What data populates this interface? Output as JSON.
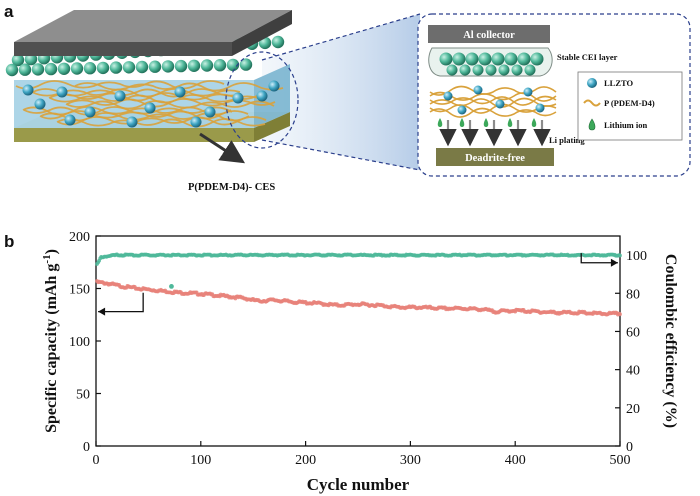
{
  "panels": {
    "a": "a",
    "b": "b"
  },
  "schematic": {
    "arrow_label": "P(PDEM-D4)- CES",
    "inset": {
      "collector": "Al collector",
      "cei": "Stable CEI layer",
      "plating": "Li plating",
      "dendrite": "Deadrite-free",
      "legend": [
        {
          "label": "LLZTO",
          "icon": "teal-sphere-icon"
        },
        {
          "label": "P (PDEM-D4)",
          "icon": "wavy-chain-icon"
        },
        {
          "label": "Lithium ion",
          "icon": "green-droplet-icon"
        }
      ]
    },
    "colors": {
      "ceramic": "#4fb89a",
      "polymer": "#d9a23c",
      "top_plate": "#7f7f7f",
      "bottom_plate": "#9a9a4a",
      "electrolyte": "#9ccbe0"
    }
  },
  "chart_data": {
    "type": "scatter",
    "xlabel": "Cycle number",
    "ylabel_left": "Specific capacity (mAh g⁻¹)",
    "ylabel_left_main": "Specific capacity (mAh g",
    "ylabel_left_sup": "-1",
    "ylabel_left_close": ")",
    "ylabel_right": "Coulombic efficiency (%)",
    "xlim": [
      0,
      500
    ],
    "ylim_left": [
      0,
      200
    ],
    "ylim_right": [
      0,
      110
    ],
    "xticks": [
      0,
      100,
      200,
      300,
      400,
      500
    ],
    "yticks_left": [
      0,
      50,
      100,
      150,
      200
    ],
    "yticks_right": [
      0,
      20,
      40,
      60,
      80,
      100
    ],
    "grid": false,
    "series": [
      {
        "axis": "left",
        "color": "#e8837a",
        "points": [
          [
            1,
            156
          ],
          [
            10,
            155
          ],
          [
            25,
            152
          ],
          [
            40,
            150
          ],
          [
            50,
            149
          ],
          [
            60,
            148
          ],
          [
            70,
            147
          ],
          [
            80,
            146
          ],
          [
            100,
            145
          ],
          [
            120,
            143
          ],
          [
            140,
            141
          ],
          [
            155,
            138
          ],
          [
            170,
            139
          ],
          [
            190,
            137
          ],
          [
            210,
            136
          ],
          [
            230,
            134
          ],
          [
            250,
            135
          ],
          [
            270,
            134
          ],
          [
            290,
            132
          ],
          [
            310,
            132
          ],
          [
            330,
            131
          ],
          [
            350,
            131
          ],
          [
            370,
            130
          ],
          [
            380,
            128
          ],
          [
            400,
            129
          ],
          [
            420,
            128
          ],
          [
            440,
            127
          ],
          [
            460,
            127
          ],
          [
            480,
            126
          ],
          [
            500,
            126
          ]
        ]
      },
      {
        "axis": "right",
        "color": "#4fb89a",
        "points": [
          [
            1,
            95
          ],
          [
            5,
            99
          ],
          [
            20,
            100
          ],
          [
            50,
            100
          ],
          [
            100,
            100
          ],
          [
            150,
            100
          ],
          [
            200,
            100
          ],
          [
            250,
            100
          ],
          [
            300,
            100
          ],
          [
            350,
            100
          ],
          [
            400,
            100
          ],
          [
            450,
            100
          ],
          [
            500,
            100
          ]
        ]
      }
    ],
    "outliers": [
      {
        "axis": "left",
        "x": 72,
        "y": 152,
        "color": "#4fb89a"
      }
    ],
    "axis_arrows": [
      {
        "from": [
          45,
          128
        ],
        "to": [
          2,
          128
        ],
        "axis": "left",
        "direction": "left"
      },
      {
        "from": [
          463,
          96
        ],
        "to": [
          498,
          96
        ],
        "axis": "right",
        "direction": "right"
      }
    ]
  }
}
